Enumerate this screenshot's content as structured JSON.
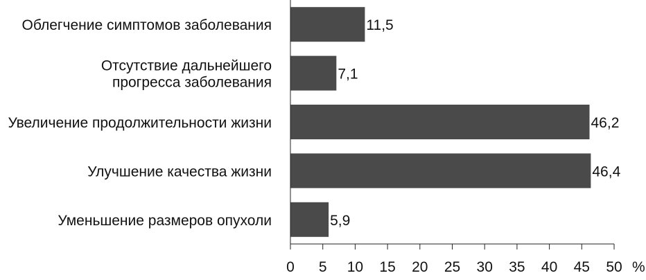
{
  "chart_data": {
    "type": "bar",
    "orientation": "horizontal",
    "categories": [
      [
        "Облегчение симптомов заболевания"
      ],
      [
        "Отсутствие дальнейшего",
        "прогресса заболевания"
      ],
      [
        "Увеличение продолжительности жизни"
      ],
      [
        "Улучшение качества жизни"
      ],
      [
        "Уменьшение размеров опухоли"
      ]
    ],
    "values": [
      11.5,
      7.1,
      46.2,
      46.4,
      5.9
    ],
    "value_labels": [
      "11,5",
      "7,1",
      "46,2",
      "46,4",
      "5,9"
    ],
    "x_ticks": [
      0,
      5,
      10,
      15,
      20,
      25,
      30,
      35,
      40,
      45,
      50
    ],
    "xlim": [
      0,
      50
    ],
    "x_unit": "%",
    "grid": false,
    "colors": {
      "bar": "#4a4a4a",
      "axis": "#222222"
    }
  }
}
